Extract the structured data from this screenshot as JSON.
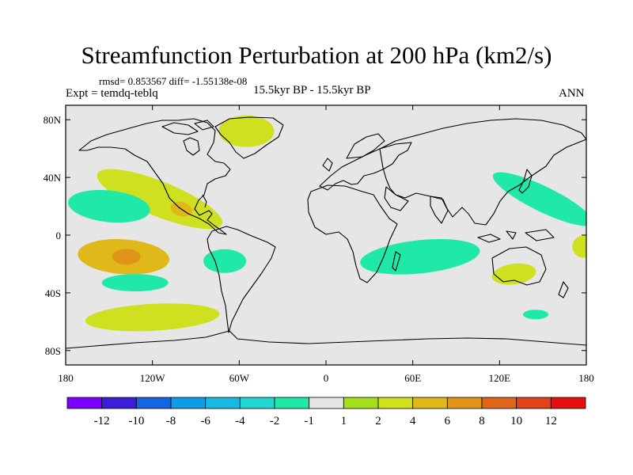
{
  "header": {
    "title": "Streamfunction Perturbation at 200 hPa (km2/s)",
    "stats": "rmsd= 0.853567 diff= -1.55138e-08",
    "expt": "Expt = temdq-teblq",
    "period": "15.5kyr BP - 15.5kyr BP",
    "season": "ANN"
  },
  "colors": {
    "background_land": "#e6e6e6",
    "level_colors": [
      "#7b00ff",
      "#3a1fd6",
      "#1565e0",
      "#0f9be6",
      "#19b8e0",
      "#22d6d2",
      "#1fe8a8",
      "#e6e6e6",
      "#a5e01c",
      "#cfe020",
      "#e0b81a",
      "#e0951a",
      "#e0661a",
      "#e0421a",
      "#e60f0f"
    ]
  },
  "chart_data": {
    "type": "heatmap",
    "title": "Streamfunction Perturbation at 200 hPa (km2/s)",
    "x_axis": {
      "range": [
        -180,
        180
      ],
      "ticks": [
        -180,
        -120,
        -60,
        0,
        60,
        120,
        180
      ],
      "tick_labels": [
        "180",
        "120W",
        "60W",
        "0",
        "60E",
        "120E",
        "180"
      ]
    },
    "y_axis": {
      "range": [
        -90,
        90
      ],
      "ticks": [
        80,
        40,
        0,
        -40,
        -80
      ],
      "tick_labels": [
        "80N",
        "40N",
        "0",
        "40S",
        "80S"
      ]
    },
    "colorbar": {
      "levels": [
        -12,
        -10,
        -8,
        -6,
        -4,
        -2,
        -1,
        1,
        2,
        4,
        6,
        8,
        10,
        12
      ],
      "labels": [
        "-12",
        "-10",
        "-8",
        "-6",
        "-4",
        "-2",
        "-1",
        "1",
        "2",
        "4",
        "6",
        "8",
        "10",
        "12"
      ]
    },
    "anomaly_regions": [
      {
        "name": "greenland-positive",
        "lon": -55,
        "lat": 72,
        "value": 2
      },
      {
        "name": "north-pacific-east-positive",
        "lon": -115,
        "lat": 25,
        "value": 2
      },
      {
        "name": "central-america-core",
        "lon": -100,
        "lat": 18,
        "value": 4
      },
      {
        "name": "tropical-pacific-north-negative",
        "lon": -150,
        "lat": 20,
        "value": -2
      },
      {
        "name": "tropical-pacific-south-positive",
        "lon": -140,
        "lat": -15,
        "value": 4
      },
      {
        "name": "tropical-pacific-south-core",
        "lon": -138,
        "lat": -15,
        "value": 6
      },
      {
        "name": "south-atlantic-negative",
        "lon": -70,
        "lat": -18,
        "value": -2
      },
      {
        "name": "south-pacific-negative",
        "lon": -132,
        "lat": -33,
        "value": -2
      },
      {
        "name": "southern-ocean-positive",
        "lon": -120,
        "lat": -57,
        "value": 2
      },
      {
        "name": "indian-ocean-negative",
        "lon": 65,
        "lat": -15,
        "value": -2
      },
      {
        "name": "australia-positive",
        "lon": 130,
        "lat": -27,
        "value": 2
      },
      {
        "name": "west-pacific-negative",
        "lon": 150,
        "lat": 25,
        "value": -2
      },
      {
        "name": "tasman-negative",
        "lon": 145,
        "lat": -55,
        "value": -2
      },
      {
        "name": "east-pacific-edge-positive",
        "lon": 178,
        "lat": -8,
        "value": 2
      }
    ]
  }
}
